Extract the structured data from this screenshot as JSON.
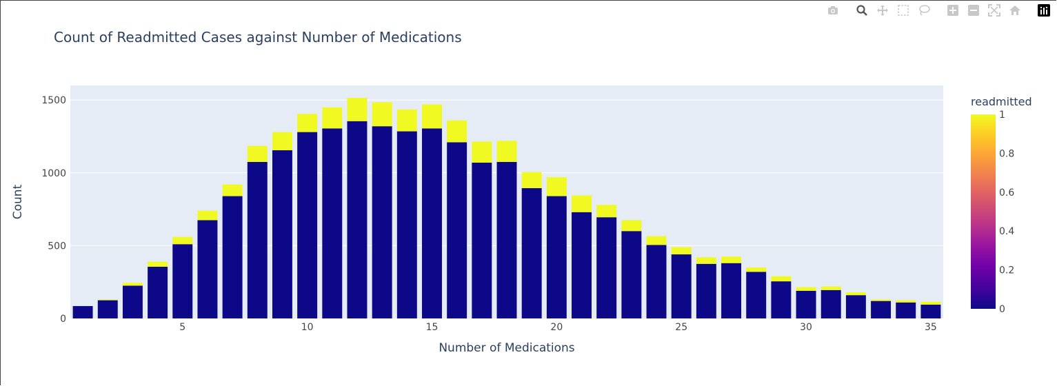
{
  "chart_data": {
    "type": "bar",
    "title": "Count of Readmitted Cases against Number of Medications",
    "xlabel": "Number of Medications",
    "ylabel": "Count",
    "xlim": [
      0.5,
      35.5
    ],
    "ylim": [
      0,
      1600
    ],
    "x_ticks": [
      5,
      10,
      15,
      20,
      25,
      30,
      35
    ],
    "y_ticks": [
      0,
      500,
      1000,
      1500
    ],
    "barmode": "stack",
    "x": [
      1,
      2,
      3,
      4,
      5,
      6,
      7,
      8,
      9,
      10,
      11,
      12,
      13,
      14,
      15,
      16,
      17,
      18,
      19,
      20,
      21,
      22,
      23,
      24,
      25,
      26,
      27,
      28,
      29,
      30,
      31,
      32,
      33,
      34,
      35
    ],
    "series": [
      {
        "readmitted": 0,
        "color": "#0d0887",
        "values": [
          85,
          125,
          225,
          355,
          510,
          675,
          840,
          1075,
          1155,
          1280,
          1305,
          1355,
          1320,
          1285,
          1305,
          1210,
          1070,
          1075,
          895,
          840,
          730,
          695,
          600,
          505,
          440,
          375,
          380,
          320,
          255,
          190,
          195,
          160,
          120,
          110,
          95
        ]
      },
      {
        "readmitted": 1,
        "color": "#f0f921",
        "values": [
          0,
          5,
          20,
          35,
          50,
          65,
          80,
          110,
          125,
          125,
          145,
          160,
          165,
          150,
          165,
          150,
          145,
          145,
          110,
          130,
          115,
          85,
          75,
          60,
          50,
          45,
          45,
          30,
          35,
          25,
          25,
          20,
          10,
          15,
          20
        ]
      }
    ],
    "colorbar": {
      "title": "readmitted",
      "ticks": [
        "0",
        "0.2",
        "0.4",
        "0.6",
        "0.8",
        "1"
      ],
      "scale": [
        "#0d0887",
        "#46039f",
        "#7201a8",
        "#9c179e",
        "#bd3786",
        "#d8576b",
        "#ed7953",
        "#fb9f3a",
        "#fdca26",
        "#f0f921"
      ]
    },
    "grid": true,
    "background": "#e5ecf6"
  },
  "modebar": {
    "icons": [
      "camera-icon",
      "zoom-icon",
      "pan-icon",
      "box-select-icon",
      "lasso-select-icon",
      "zoom-in-icon",
      "zoom-out-icon",
      "autoscale-icon",
      "reset-axes-icon",
      "plotly-logo-icon"
    ]
  }
}
